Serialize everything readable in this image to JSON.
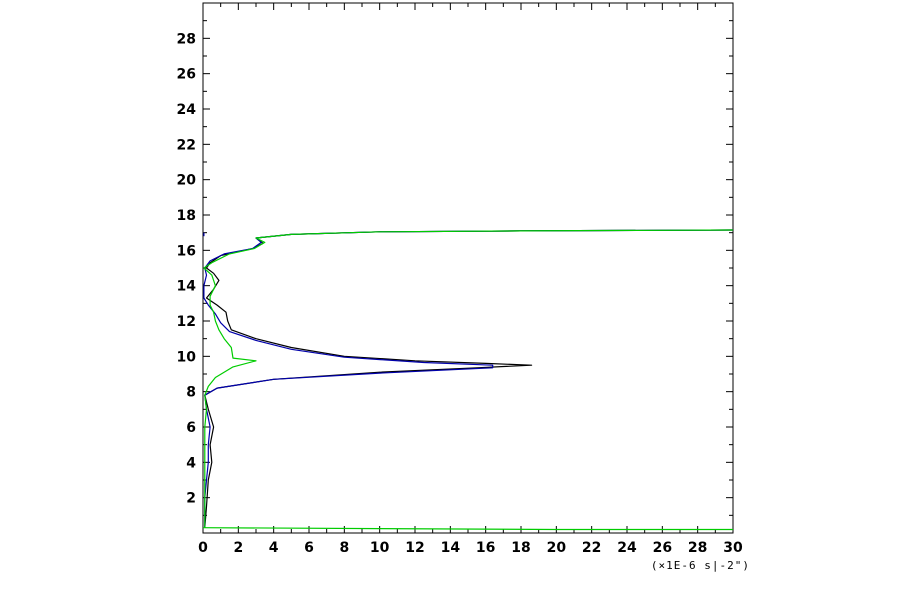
{
  "chart_data": {
    "type": "line",
    "title": "",
    "xlabel": "(×1E-6 s|-2\")",
    "ylabel": "",
    "xlim": [
      0,
      30
    ],
    "ylim": [
      0,
      30
    ],
    "x_ticks": [
      "0",
      "2",
      "4",
      "6",
      "8",
      "10",
      "12",
      "14",
      "16",
      "18",
      "20",
      "22",
      "24",
      "26",
      "28",
      "30"
    ],
    "y_ticks": [
      "2",
      "4",
      "6",
      "8",
      "10",
      "12",
      "14",
      "16",
      "18",
      "20",
      "22",
      "24",
      "26",
      "28"
    ],
    "grid": false,
    "legend": "none",
    "series": [
      {
        "color": "#000000",
        "points": [
          [
            0.1,
            0.3
          ],
          [
            0.2,
            1.5
          ],
          [
            0.3,
            3.0
          ],
          [
            0.5,
            4.0
          ],
          [
            0.4,
            5.0
          ],
          [
            0.6,
            6.0
          ],
          [
            0.3,
            7.0
          ],
          [
            0.1,
            7.8
          ],
          [
            0.8,
            8.2
          ],
          [
            4.0,
            8.7
          ],
          [
            10.0,
            9.1
          ],
          [
            15.5,
            9.35
          ],
          [
            18.6,
            9.5
          ],
          [
            16.0,
            9.6
          ],
          [
            12.0,
            9.75
          ],
          [
            8.0,
            10.0
          ],
          [
            5.0,
            10.5
          ],
          [
            3.0,
            11.0
          ],
          [
            1.6,
            11.5
          ],
          [
            1.4,
            12.0
          ],
          [
            1.3,
            12.5
          ],
          [
            0.8,
            12.9
          ],
          [
            0.2,
            13.3
          ],
          [
            0.6,
            13.8
          ],
          [
            0.9,
            14.3
          ],
          [
            0.6,
            14.7
          ],
          [
            0.2,
            15.0
          ],
          [
            0.4,
            15.3
          ],
          [
            1.0,
            15.7
          ],
          [
            2.8,
            16.1
          ],
          [
            3.4,
            16.4
          ],
          [
            3.0,
            16.7
          ],
          [
            5.0,
            16.9
          ],
          [
            10.0,
            17.05
          ],
          [
            18.0,
            17.1
          ],
          [
            30.0,
            17.15
          ]
        ]
      },
      {
        "color": "#0000aa",
        "points": [
          [
            0.1,
            0.3
          ],
          [
            0.1,
            2.0
          ],
          [
            0.2,
            3.0
          ],
          [
            0.3,
            4.0
          ],
          [
            0.3,
            5.0
          ],
          [
            0.4,
            6.0
          ],
          [
            0.2,
            7.0
          ],
          [
            0.1,
            7.8
          ],
          [
            0.8,
            8.2
          ],
          [
            4.0,
            8.7
          ],
          [
            10.0,
            9.05
          ],
          [
            16.4,
            9.35
          ],
          [
            16.4,
            9.5
          ],
          [
            12.5,
            9.65
          ],
          [
            8.0,
            9.95
          ],
          [
            5.0,
            10.4
          ],
          [
            3.0,
            10.9
          ],
          [
            1.5,
            11.4
          ],
          [
            1.0,
            11.9
          ],
          [
            0.7,
            12.4
          ],
          [
            0.3,
            12.9
          ],
          [
            0.05,
            13.3
          ],
          [
            0.05,
            14.0
          ],
          [
            0.2,
            14.6
          ],
          [
            0.1,
            15.0
          ],
          [
            0.4,
            15.4
          ],
          [
            1.2,
            15.8
          ],
          [
            2.8,
            16.1
          ],
          [
            3.3,
            16.45
          ],
          [
            3.0,
            16.7
          ],
          [
            5.0,
            16.9
          ],
          [
            10.0,
            17.05
          ],
          [
            18.0,
            17.1
          ],
          [
            30.0,
            17.15
          ]
        ]
      },
      {
        "color": "#00cc00",
        "points": [
          [
            0.1,
            0.3
          ],
          [
            0.1,
            2.0
          ],
          [
            0.1,
            4.0
          ],
          [
            0.1,
            6.0
          ],
          [
            0.2,
            7.0
          ],
          [
            0.1,
            7.8
          ],
          [
            0.3,
            8.3
          ],
          [
            0.7,
            8.8
          ],
          [
            1.7,
            9.4
          ],
          [
            3.0,
            9.75
          ],
          [
            1.7,
            9.9
          ],
          [
            1.6,
            10.5
          ],
          [
            1.2,
            11.0
          ],
          [
            0.9,
            11.5
          ],
          [
            0.7,
            12.0
          ],
          [
            0.6,
            12.5
          ],
          [
            0.4,
            12.9
          ],
          [
            0.4,
            13.4
          ],
          [
            0.7,
            14.0
          ],
          [
            0.5,
            14.6
          ],
          [
            0.05,
            15.0
          ],
          [
            0.5,
            15.3
          ],
          [
            1.5,
            15.8
          ],
          [
            2.9,
            16.1
          ],
          [
            3.5,
            16.45
          ],
          [
            3.0,
            16.7
          ],
          [
            5.0,
            16.9
          ],
          [
            10.0,
            17.05
          ],
          [
            18.0,
            17.1
          ],
          [
            30.0,
            17.15
          ]
        ]
      },
      {
        "color": "#00cc00",
        "points": [
          [
            0.0,
            0.3
          ],
          [
            10.0,
            0.25
          ],
          [
            20.0,
            0.2
          ],
          [
            30.0,
            0.2
          ]
        ]
      },
      {
        "color": "#0000aa",
        "points": [
          [
            0.05,
            17.0
          ],
          [
            0.05,
            16.8
          ]
        ]
      }
    ]
  }
}
